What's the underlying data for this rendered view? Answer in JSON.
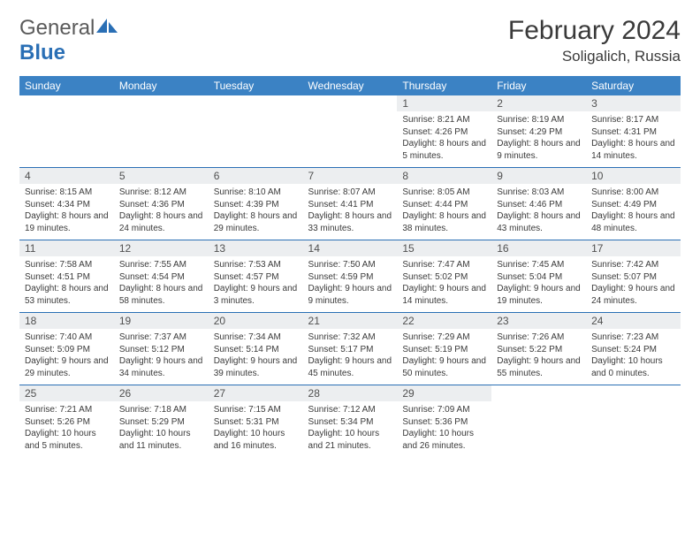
{
  "logo": {
    "word1": "General",
    "word2": "Blue"
  },
  "title": "February 2024",
  "location": "Soligalich, Russia",
  "colors": {
    "header_bg": "#3b82c4",
    "header_text": "#ffffff",
    "border": "#2a6fb5",
    "daynum_bg": "#eceef0",
    "text": "#3a3a3a",
    "logo_gray": "#5a5a5a",
    "logo_blue": "#2a6fb5"
  },
  "weekdays": [
    "Sunday",
    "Monday",
    "Tuesday",
    "Wednesday",
    "Thursday",
    "Friday",
    "Saturday"
  ],
  "weeks": [
    [
      null,
      null,
      null,
      null,
      {
        "n": "1",
        "sr": "8:21 AM",
        "ss": "4:26 PM",
        "dl": "8 hours and 5 minutes."
      },
      {
        "n": "2",
        "sr": "8:19 AM",
        "ss": "4:29 PM",
        "dl": "8 hours and 9 minutes."
      },
      {
        "n": "3",
        "sr": "8:17 AM",
        "ss": "4:31 PM",
        "dl": "8 hours and 14 minutes."
      }
    ],
    [
      {
        "n": "4",
        "sr": "8:15 AM",
        "ss": "4:34 PM",
        "dl": "8 hours and 19 minutes."
      },
      {
        "n": "5",
        "sr": "8:12 AM",
        "ss": "4:36 PM",
        "dl": "8 hours and 24 minutes."
      },
      {
        "n": "6",
        "sr": "8:10 AM",
        "ss": "4:39 PM",
        "dl": "8 hours and 29 minutes."
      },
      {
        "n": "7",
        "sr": "8:07 AM",
        "ss": "4:41 PM",
        "dl": "8 hours and 33 minutes."
      },
      {
        "n": "8",
        "sr": "8:05 AM",
        "ss": "4:44 PM",
        "dl": "8 hours and 38 minutes."
      },
      {
        "n": "9",
        "sr": "8:03 AM",
        "ss": "4:46 PM",
        "dl": "8 hours and 43 minutes."
      },
      {
        "n": "10",
        "sr": "8:00 AM",
        "ss": "4:49 PM",
        "dl": "8 hours and 48 minutes."
      }
    ],
    [
      {
        "n": "11",
        "sr": "7:58 AM",
        "ss": "4:51 PM",
        "dl": "8 hours and 53 minutes."
      },
      {
        "n": "12",
        "sr": "7:55 AM",
        "ss": "4:54 PM",
        "dl": "8 hours and 58 minutes."
      },
      {
        "n": "13",
        "sr": "7:53 AM",
        "ss": "4:57 PM",
        "dl": "9 hours and 3 minutes."
      },
      {
        "n": "14",
        "sr": "7:50 AM",
        "ss": "4:59 PM",
        "dl": "9 hours and 9 minutes."
      },
      {
        "n": "15",
        "sr": "7:47 AM",
        "ss": "5:02 PM",
        "dl": "9 hours and 14 minutes."
      },
      {
        "n": "16",
        "sr": "7:45 AM",
        "ss": "5:04 PM",
        "dl": "9 hours and 19 minutes."
      },
      {
        "n": "17",
        "sr": "7:42 AM",
        "ss": "5:07 PM",
        "dl": "9 hours and 24 minutes."
      }
    ],
    [
      {
        "n": "18",
        "sr": "7:40 AM",
        "ss": "5:09 PM",
        "dl": "9 hours and 29 minutes."
      },
      {
        "n": "19",
        "sr": "7:37 AM",
        "ss": "5:12 PM",
        "dl": "9 hours and 34 minutes."
      },
      {
        "n": "20",
        "sr": "7:34 AM",
        "ss": "5:14 PM",
        "dl": "9 hours and 39 minutes."
      },
      {
        "n": "21",
        "sr": "7:32 AM",
        "ss": "5:17 PM",
        "dl": "9 hours and 45 minutes."
      },
      {
        "n": "22",
        "sr": "7:29 AM",
        "ss": "5:19 PM",
        "dl": "9 hours and 50 minutes."
      },
      {
        "n": "23",
        "sr": "7:26 AM",
        "ss": "5:22 PM",
        "dl": "9 hours and 55 minutes."
      },
      {
        "n": "24",
        "sr": "7:23 AM",
        "ss": "5:24 PM",
        "dl": "10 hours and 0 minutes."
      }
    ],
    [
      {
        "n": "25",
        "sr": "7:21 AM",
        "ss": "5:26 PM",
        "dl": "10 hours and 5 minutes."
      },
      {
        "n": "26",
        "sr": "7:18 AM",
        "ss": "5:29 PM",
        "dl": "10 hours and 11 minutes."
      },
      {
        "n": "27",
        "sr": "7:15 AM",
        "ss": "5:31 PM",
        "dl": "10 hours and 16 minutes."
      },
      {
        "n": "28",
        "sr": "7:12 AM",
        "ss": "5:34 PM",
        "dl": "10 hours and 21 minutes."
      },
      {
        "n": "29",
        "sr": "7:09 AM",
        "ss": "5:36 PM",
        "dl": "10 hours and 26 minutes."
      },
      null,
      null
    ]
  ],
  "labels": {
    "sunrise": "Sunrise:",
    "sunset": "Sunset:",
    "daylight": "Daylight:"
  }
}
